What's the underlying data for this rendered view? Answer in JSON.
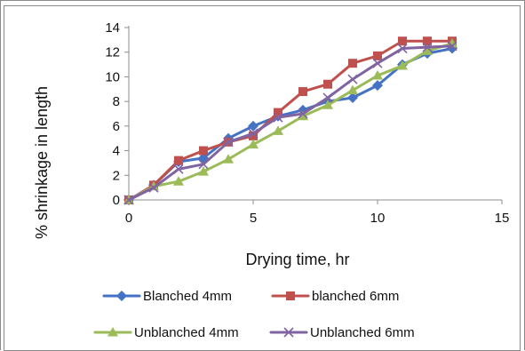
{
  "chart_data": {
    "type": "line",
    "xlabel": "Drying time, hr",
    "ylabel": "% shrinkage in length",
    "xlim": [
      0,
      15
    ],
    "ylim": [
      0,
      14
    ],
    "xticks": [
      0,
      5,
      10,
      15
    ],
    "yticks": [
      0,
      2,
      4,
      6,
      8,
      10,
      12,
      14
    ],
    "grid": false,
    "legend_position": "bottom",
    "x": [
      0,
      1,
      2,
      3,
      4,
      5,
      6,
      7,
      8,
      9,
      10,
      11,
      12,
      13
    ],
    "series": [
      {
        "name": "Blanched 4mm",
        "marker": "diamond",
        "color": "#4472C4",
        "values": [
          0,
          1.2,
          3.1,
          3.4,
          5.0,
          6.0,
          6.8,
          7.3,
          8.0,
          8.3,
          9.3,
          11.0,
          11.9,
          12.3
        ]
      },
      {
        "name": "blanched 6mm",
        "marker": "square",
        "color": "#C0504D",
        "values": [
          0,
          1.2,
          3.2,
          4.0,
          4.7,
          5.2,
          7.1,
          8.8,
          9.4,
          11.1,
          11.7,
          12.9,
          12.9,
          12.9
        ]
      },
      {
        "name": "Unblanched 4mm",
        "marker": "triangle",
        "color": "#9BBB59",
        "values": [
          0,
          1.1,
          1.5,
          2.3,
          3.3,
          4.5,
          5.6,
          6.8,
          7.7,
          8.9,
          10.1,
          10.9,
          12.1,
          12.7
        ]
      },
      {
        "name": "Unblanched 6mm",
        "marker": "x",
        "color": "#8064A2",
        "values": [
          0,
          1.0,
          2.5,
          2.9,
          4.7,
          5.4,
          6.7,
          7.0,
          8.3,
          9.8,
          11.1,
          12.3,
          12.4,
          12.5
        ]
      }
    ]
  }
}
